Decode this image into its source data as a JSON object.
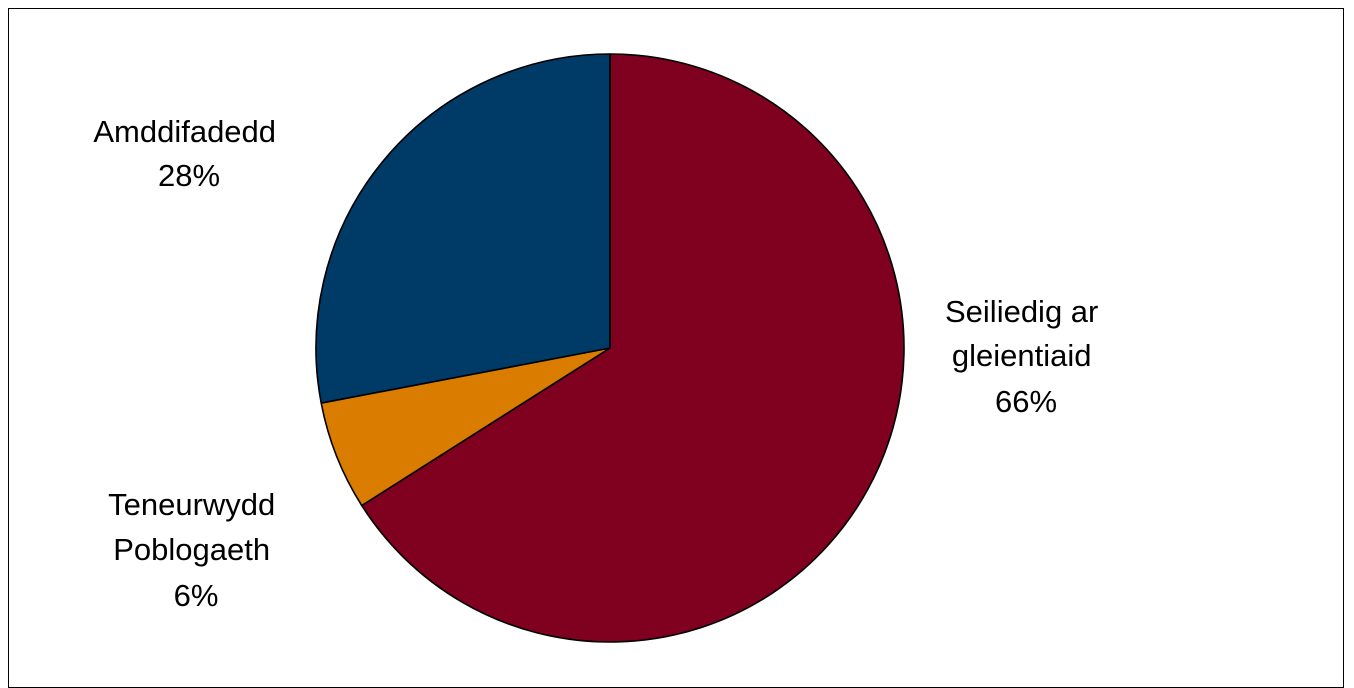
{
  "chart_data": {
    "type": "pie",
    "title": "",
    "slices": [
      {
        "label_lines": [
          "Seiliedig ar",
          "gleientiaid"
        ],
        "value": 66,
        "value_label": "66%",
        "color": "#800020"
      },
      {
        "label_lines": [
          "Teneurwydd",
          "Poblogaeth"
        ],
        "value": 6,
        "value_label": "6%",
        "color": "#D97C00"
      },
      {
        "label_lines": [
          "Amddifadedd"
        ],
        "value": 28,
        "value_label": "28%",
        "color": "#003A66"
      }
    ]
  }
}
